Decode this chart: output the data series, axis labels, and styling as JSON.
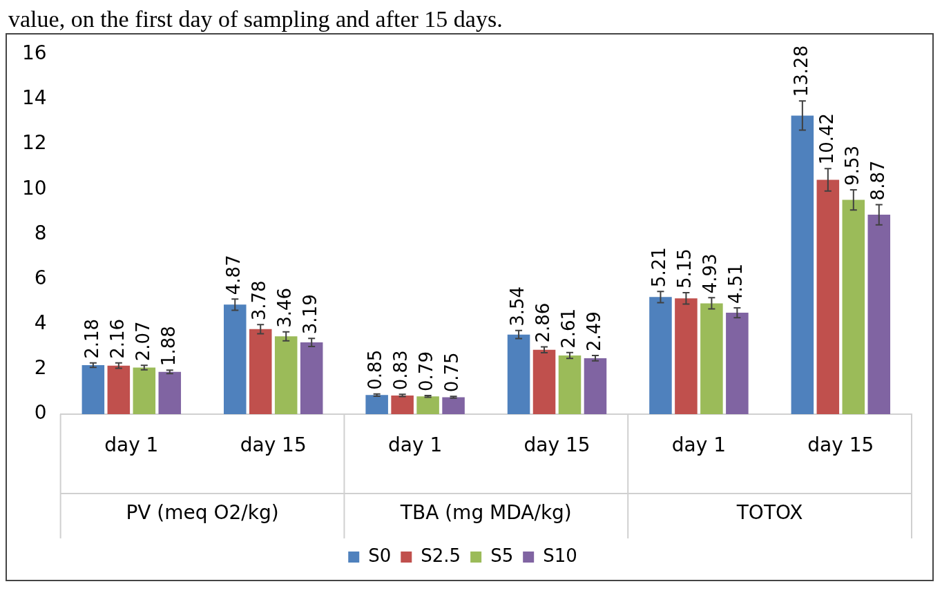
{
  "chart_data": {
    "type": "bar",
    "title": "value, on the first day of sampling and after 15 days.",
    "categories": [
      "day 1",
      "day 15",
      "day 1",
      "day 15",
      "day 1",
      "day 15"
    ],
    "annotations": [
      "PV (meq O2/kg)",
      "TBA (mg MDA/kg)",
      "TOTOX"
    ],
    "series": [
      {
        "name": "S0",
        "color": "#4f81bd",
        "values": [
          2.18,
          4.87,
          0.85,
          3.54,
          5.21,
          13.28
        ],
        "errors": [
          0.1,
          0.25,
          0.05,
          0.18,
          0.25,
          0.65
        ]
      },
      {
        "name": "S2.5",
        "color": "#c0504d",
        "values": [
          2.16,
          3.78,
          0.83,
          2.86,
          5.15,
          10.42
        ],
        "errors": [
          0.12,
          0.2,
          0.05,
          0.13,
          0.25,
          0.5
        ]
      },
      {
        "name": "S5",
        "color": "#9bbb59",
        "values": [
          2.07,
          3.46,
          0.79,
          2.61,
          4.93,
          9.53
        ],
        "errors": [
          0.1,
          0.2,
          0.04,
          0.13,
          0.25,
          0.45
        ]
      },
      {
        "name": "S10",
        "color": "#8064a2",
        "values": [
          1.88,
          3.19,
          0.75,
          2.49,
          4.51,
          8.87
        ],
        "errors": [
          0.08,
          0.18,
          0.04,
          0.12,
          0.22,
          0.45
        ]
      }
    ],
    "ylim": [
      0,
      16
    ],
    "yticks": [
      0,
      2,
      4,
      6,
      8,
      10,
      12,
      14,
      16
    ],
    "data_labels": true,
    "legend": "bottom"
  }
}
